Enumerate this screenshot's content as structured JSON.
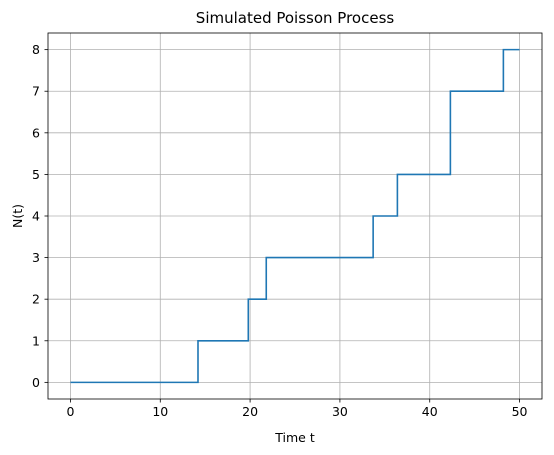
{
  "chart_data": {
    "type": "line",
    "drawstyle": "steps-post",
    "title": "Simulated Poisson Process",
    "xlabel": "Time t",
    "ylabel": "N(t)",
    "xlim": [
      -2.5,
      52.5
    ],
    "ylim": [
      -0.4,
      8.4
    ],
    "xticks": [
      0,
      10,
      20,
      30,
      40,
      50
    ],
    "yticks": [
      0,
      1,
      2,
      3,
      4,
      5,
      6,
      7,
      8
    ],
    "grid": true,
    "colors": {
      "line": "#1f77b4",
      "grid": "#b0b0b0"
    },
    "series": [
      {
        "x": [
          0,
          14.2,
          19.8,
          21.8,
          33.7,
          36.4,
          42.3,
          48.2,
          50
        ],
        "y": [
          0,
          1,
          2,
          3,
          4,
          5,
          7,
          8,
          8
        ]
      }
    ]
  }
}
